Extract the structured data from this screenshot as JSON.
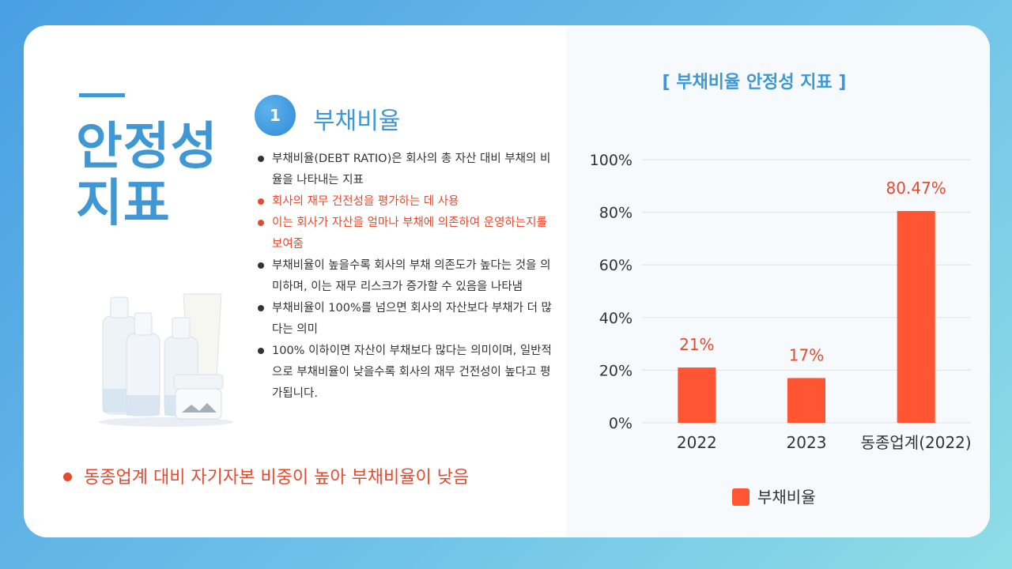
{
  "left": {
    "title_line1": "안정성",
    "title_line2": "지표",
    "badge_number": "1",
    "section_title": "부채비율",
    "bullets": [
      {
        "text": "부채비율(DEBT RATIO)은 회사의 총 자산 대비 부채의 비율을 나타내는 지표",
        "highlight": false
      },
      {
        "text": "회사의 재무 건전성을 평가하는 데 사용",
        "highlight": true
      },
      {
        "text": "이는 회사가 자산을 얼마나 부채에 의존하여 운영하는지를 보여줌",
        "highlight": true
      },
      {
        "text": "부채비율이 높을수록 회사의 부채 의존도가 높다는 것을 의미하며, 이는 재무 리스크가 증가할 수 있음을 나타냄",
        "highlight": false
      },
      {
        "text": "부채비율이 100%를 넘으면 회사의 자산보다 부채가 더 많다는 의미",
        "highlight": false
      },
      {
        "text": "100% 이하이면 자산이 부채보다 많다는 의미이며, 일반적으로 부채비율이 낮을수록 회사의 재무 건전성이 높다고 평가됩니다.",
        "highlight": false
      }
    ],
    "summary": "동종업계 대비 자기자본 비중이 높아 부채비율이 낮음"
  },
  "colors": {
    "accent_blue": "#3f98d4",
    "accent_red": "#e64a2e",
    "bar": "#ff5533"
  },
  "chart_data": {
    "type": "bar",
    "title": "[ 부채비율 안정성 지표 ]",
    "categories": [
      "2022",
      "2023",
      "동종업계(2022)"
    ],
    "series": [
      {
        "name": "부채비율",
        "values": [
          21,
          17,
          80.47
        ]
      }
    ],
    "data_labels": [
      "21%",
      "17%",
      "80.47%"
    ],
    "ylim": [
      0,
      100
    ],
    "yticks": [
      "0%",
      "20%",
      "40%",
      "60%",
      "80%",
      "100%"
    ],
    "ytick_values": [
      0,
      20,
      40,
      60,
      80,
      100
    ],
    "grid": true,
    "legend": "bottom"
  }
}
